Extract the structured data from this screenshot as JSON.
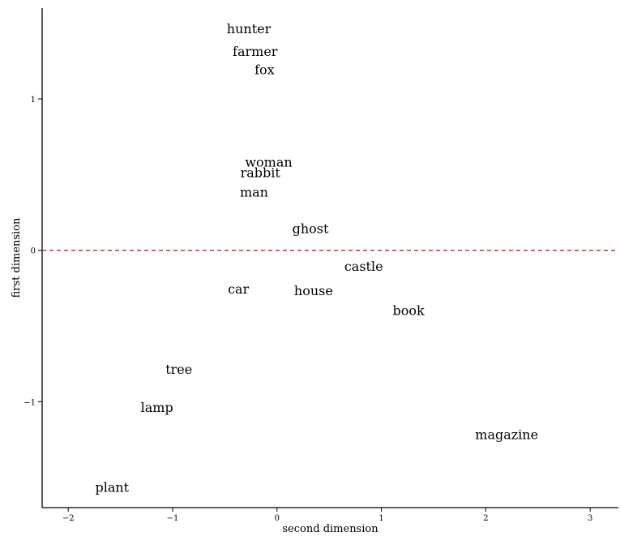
{
  "chart_data": {
    "type": "scatter",
    "title": "",
    "xlabel": "second dimension",
    "ylabel": "first dimension",
    "xlim": [
      -2.25,
      3.27
    ],
    "ylim": [
      -1.7,
      1.6
    ],
    "x_ticks": [
      -2,
      -1,
      0,
      1,
      2,
      3
    ],
    "y_ticks": [
      -1,
      0,
      1
    ],
    "grid": false,
    "reference_line": {
      "orientation": "horizontal",
      "y": 0,
      "style": "dashed",
      "color": "#c0282d"
    },
    "points": [
      {
        "label": "hunter",
        "x": -0.27,
        "y": 1.46
      },
      {
        "label": "farmer",
        "x": -0.21,
        "y": 1.31
      },
      {
        "label": "fox",
        "x": -0.12,
        "y": 1.19
      },
      {
        "label": "woman",
        "x": -0.08,
        "y": 0.58
      },
      {
        "label": "rabbit",
        "x": -0.16,
        "y": 0.51
      },
      {
        "label": "man",
        "x": -0.22,
        "y": 0.38
      },
      {
        "label": "ghost",
        "x": 0.32,
        "y": 0.14
      },
      {
        "label": "castle",
        "x": 0.83,
        "y": -0.11
      },
      {
        "label": "car",
        "x": -0.37,
        "y": -0.26
      },
      {
        "label": "house",
        "x": 0.35,
        "y": -0.27
      },
      {
        "label": "book",
        "x": 1.26,
        "y": -0.4
      },
      {
        "label": "tree",
        "x": -0.94,
        "y": -0.79
      },
      {
        "label": "lamp",
        "x": -1.15,
        "y": -1.04
      },
      {
        "label": "magazine",
        "x": 2.2,
        "y": -1.22
      },
      {
        "label": "plant",
        "x": -1.58,
        "y": -1.57
      }
    ]
  }
}
